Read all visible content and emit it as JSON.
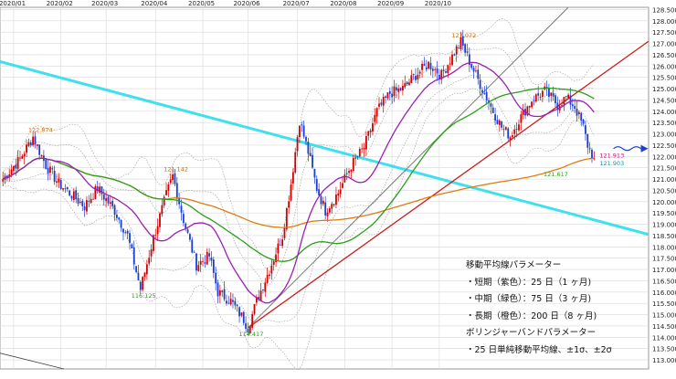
{
  "chart_data": {
    "type": "candlestick",
    "x_tick_labels": [
      "2020/01",
      "2020/02",
      "2020/03",
      "2020/04",
      "2020/05",
      "2020/06",
      "2020/07",
      "2020/08",
      "2020/09",
      "2020/10"
    ],
    "y_range": [
      112.6,
      128.6
    ],
    "y_step": 0.5,
    "annotations": [
      {
        "label": "122.874",
        "x": 16,
        "y": 122.874,
        "color": "orange-text"
      },
      {
        "label": "121.142",
        "x": 79,
        "y": 121.142,
        "color": "orange-text"
      },
      {
        "label": "116.125",
        "x": 64,
        "y": 116.125,
        "color": "green-text"
      },
      {
        "label": "114.417",
        "x": 114,
        "y": 114.417,
        "color": "green-text"
      },
      {
        "label": "127.072",
        "x": 213,
        "y": 127.072,
        "color": "orange-text"
      },
      {
        "label": "121.913",
        "x": 275,
        "y": 121.913,
        "color": "magenta-text"
      },
      {
        "label": "121.903",
        "x": 275,
        "y": 121.903,
        "color": "teal-text"
      },
      {
        "label": "121.617",
        "x": 260,
        "y": 121.617,
        "color": "green-text"
      }
    ],
    "moving_averages": [
      {
        "name": "短期",
        "color": "purple",
        "period": "25日"
      },
      {
        "name": "中期",
        "color": "green",
        "period": "75日"
      },
      {
        "name": "長期",
        "color": "orange",
        "period": "200日"
      }
    ],
    "key_prices": {
      "start": 121.0,
      "march_high": 121.142,
      "march_low": 116.125,
      "may_low": 114.417,
      "aug_high": 127.072,
      "last": 121.913
    }
  },
  "legend": {
    "title": "移動平均線パラメーター",
    "short": "・短期（紫色）：25 日（1 ヶ月)",
    "mid": "・中期（緑色）：75 日（3 ヶ月)",
    "long": "・長期（橙色）：200 日（8 ヶ月)",
    "bb_title": "ボリンジャーバンドパラメーター",
    "bb_desc": "・25 日単純移動平均線、±1σ、±2σ"
  },
  "colors": {
    "candle_up": "#d00000",
    "candle_down": "#1a3fcf",
    "ma_short": "#9b1fb5",
    "ma_mid": "#2aa01a",
    "ma_long": "#e07b12",
    "trend_cyan": "#3fe0ee",
    "trend_red": "#c82020",
    "trend_gray": "#707070",
    "grid": "#d8d8d8",
    "arrow": "#1a3fcf",
    "orange-text": "#d26a00",
    "green-text": "#2aa01a",
    "magenta-text": "#c8107a",
    "teal-text": "#1595a6"
  }
}
